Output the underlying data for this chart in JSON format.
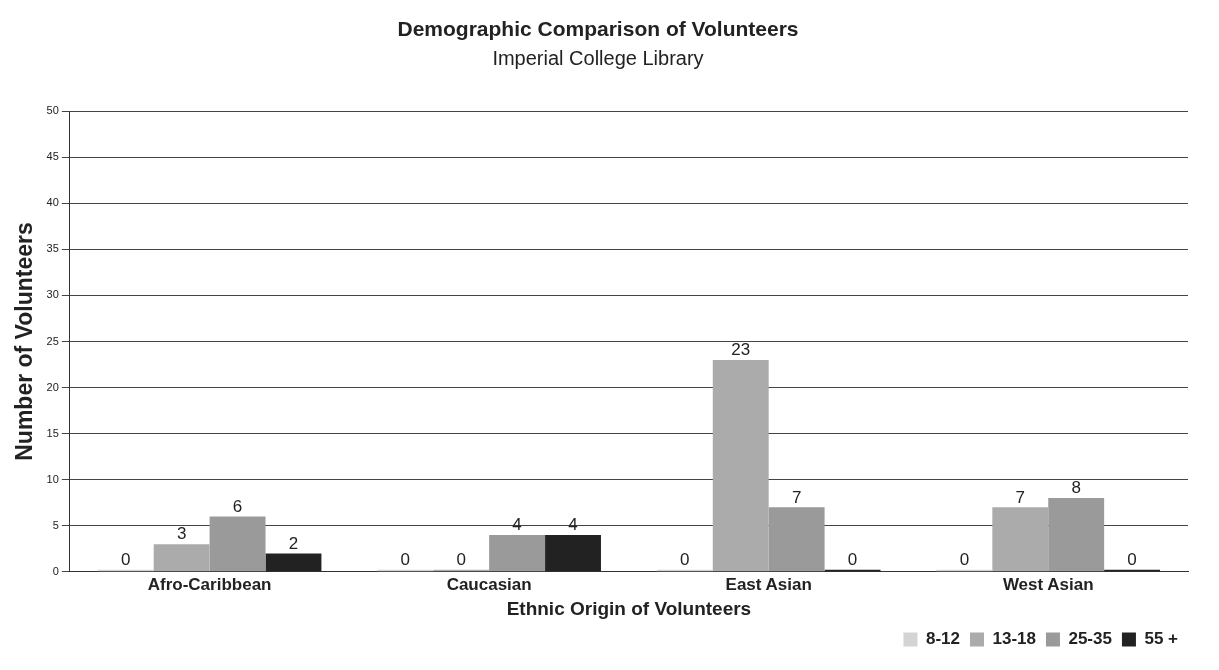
{
  "chart_data": {
    "type": "bar",
    "title": "Demographic Comparison of Volunteers",
    "subtitle": "Imperial College Library",
    "xlabel": "Ethnic Origin of Volunteers",
    "ylabel": "Number of Volunteers",
    "categories": [
      "Afro-Caribbean",
      "Caucasian",
      "East Asian",
      "West Asian"
    ],
    "series": [
      {
        "name": "8-12",
        "color": "#d4d4d4",
        "values": [
          0,
          0,
          0,
          0
        ]
      },
      {
        "name": "13-18",
        "color": "#ababab",
        "values": [
          3,
          0,
          23,
          7
        ]
      },
      {
        "name": "25-35",
        "color": "#9a9a9a",
        "values": [
          6,
          4,
          7,
          8
        ]
      },
      {
        "name": "55 +",
        "color": "#222222",
        "values": [
          2,
          4,
          0,
          0
        ]
      }
    ],
    "ylim": [
      0,
      50
    ],
    "yticks": [
      0,
      5,
      10,
      15,
      20,
      25,
      30,
      35,
      40,
      45,
      50
    ],
    "grid": "y",
    "legend": "bottom right",
    "data_labels": true
  }
}
